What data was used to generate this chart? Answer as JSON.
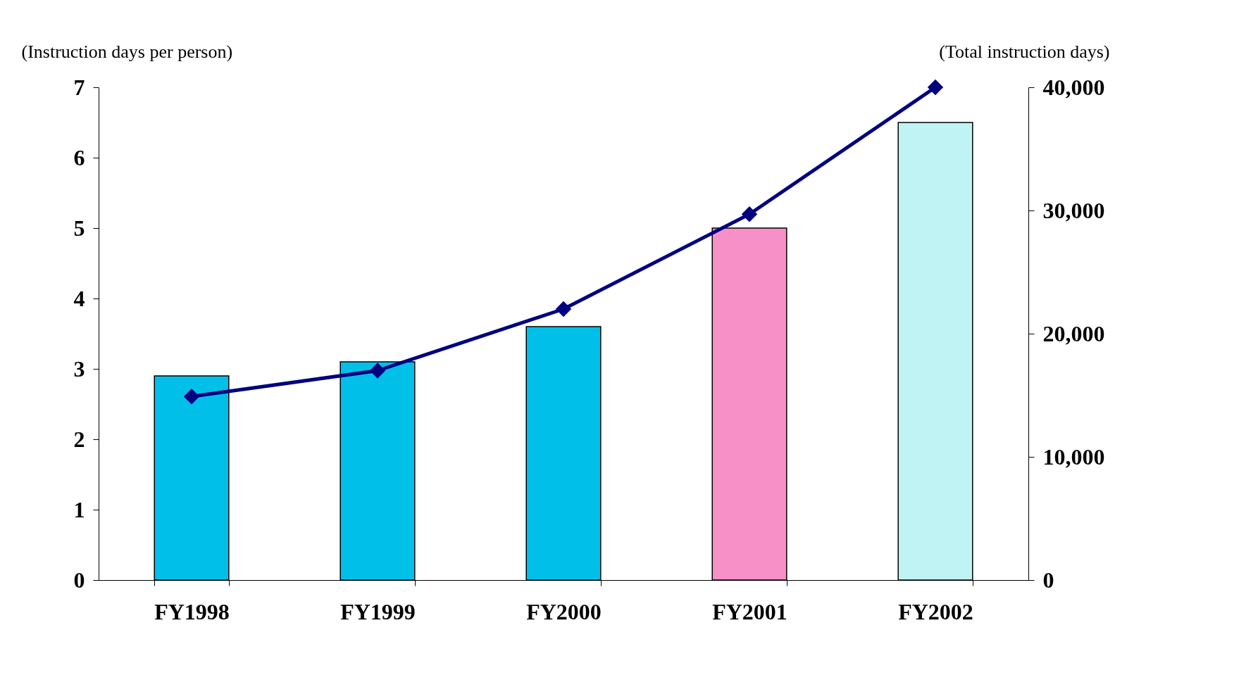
{
  "chart_data": {
    "type": "bar",
    "categories": [
      "FY1998",
      "FY1999",
      "FY2000",
      "FY2001",
      "FY2002"
    ],
    "ylabel": "(Instruction days per person)",
    "y2label": "(Total instruction days)",
    "ylim": [
      0,
      7
    ],
    "yticks": [
      0,
      1,
      2,
      3,
      4,
      5,
      6,
      7
    ],
    "y2lim": [
      0,
      40000
    ],
    "y2ticks": [
      {
        "value": 0,
        "label": "0"
      },
      {
        "value": 10000,
        "label": "10,000"
      },
      {
        "value": 20000,
        "label": "20,000"
      },
      {
        "value": 30000,
        "label": "30,000"
      },
      {
        "value": 40000,
        "label": "40,000"
      }
    ],
    "grid": false,
    "series": [
      {
        "colors": [
          "#00c0ea",
          "#00c0ea",
          "#00c0ea",
          "#f890c8",
          "#c0f4f4"
        ],
        "values": [
          2.9,
          3.1,
          3.6,
          5.0,
          6.5
        ]
      },
      {
        "type": "line",
        "axis": "y2",
        "color": "#000080",
        "marker": "diamond",
        "line_style": "solid",
        "values": [
          14900,
          17000,
          22000,
          29700,
          40000
        ]
      }
    ]
  }
}
